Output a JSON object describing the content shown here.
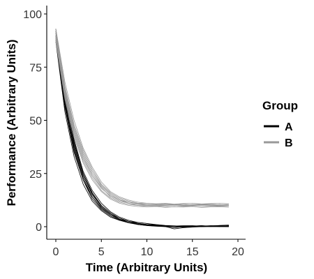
{
  "chart_data": {
    "type": "line",
    "xlabel": "Time (Arbitrary Units)",
    "ylabel": "Performance (Arbitrary Units)",
    "xlim": [
      0,
      19
    ],
    "ylim": [
      -3,
      95
    ],
    "xticks": [
      0,
      5,
      10,
      15,
      20
    ],
    "yticks": [
      0,
      25,
      50,
      75,
      100
    ],
    "grid": false,
    "legend": {
      "title": "Group",
      "placement": "right",
      "entries": [
        {
          "label": "A",
          "color": "#000000"
        },
        {
          "label": "B",
          "color": "#999999"
        }
      ]
    },
    "x": [
      0,
      1,
      2,
      3,
      4,
      5,
      6,
      7,
      8,
      9,
      10,
      11,
      12,
      13,
      14,
      15,
      16,
      17,
      18,
      19
    ],
    "series": [
      {
        "name": "A",
        "color": "#000000",
        "lines": [
          [
            90,
            58,
            37,
            23,
            14,
            9,
            5.5,
            3.5,
            2,
            1.5,
            1,
            0.5,
            0.3,
            0.2,
            0.1,
            0,
            0,
            0,
            0,
            0
          ],
          [
            92,
            60,
            38,
            24,
            15,
            9.5,
            6,
            3.5,
            2.5,
            1.5,
            1,
            0.8,
            0.3,
            0.1,
            0.3,
            0.2,
            0,
            0.2,
            0.1,
            0.5
          ],
          [
            88,
            56,
            35,
            22,
            13,
            8,
            5,
            3,
            2,
            1,
            0.5,
            0.2,
            0,
            -0.5,
            0,
            0.3,
            0.5,
            0.1,
            0.3,
            0.2
          ],
          [
            91,
            62,
            40,
            25,
            16,
            10,
            6.5,
            4,
            2.5,
            2,
            1.5,
            0.8,
            0.5,
            0.3,
            0.5,
            0.5,
            0.3,
            0.5,
            0.4,
            0.5
          ],
          [
            89,
            57,
            36,
            22,
            14,
            8.5,
            5.5,
            3.2,
            2,
            1.2,
            0.8,
            0.4,
            0.2,
            0,
            -0.3,
            0,
            0.2,
            0.4,
            0.5,
            0.3
          ],
          [
            93,
            63,
            41,
            26,
            17,
            11,
            7,
            4.5,
            3,
            2,
            1.5,
            1,
            0.6,
            0.4,
            0.2,
            0.4,
            0.1,
            0.3,
            0.6,
            0.8
          ],
          [
            87,
            54,
            33,
            20,
            12,
            7.5,
            4.5,
            3,
            1.8,
            1,
            0.6,
            0.3,
            0.1,
            -1,
            -0.5,
            -0.2,
            0,
            0.2,
            0.1,
            0
          ],
          [
            90,
            59,
            39,
            25,
            15.5,
            9.5,
            6,
            4,
            2.5,
            1.6,
            1,
            0.6,
            0.4,
            0.2,
            0,
            0.3,
            0.5,
            0.3,
            0.2,
            0.4
          ]
        ]
      },
      {
        "name": "B",
        "color": "#999999",
        "lines": [
          [
            90,
            63,
            45,
            33,
            24,
            18,
            14.5,
            12.5,
            11,
            10.5,
            10,
            10,
            10,
            10,
            10,
            10,
            10,
            10,
            10,
            10
          ],
          [
            92,
            66,
            48,
            36,
            27,
            20,
            16,
            13.5,
            12,
            11,
            10.5,
            10.3,
            10.1,
            10.2,
            10,
            9.8,
            10.1,
            10.2,
            9.9,
            10
          ],
          [
            88,
            61,
            43,
            31,
            23,
            17,
            13.5,
            11.5,
            10.5,
            10,
            9.5,
            9.7,
            9.5,
            9.3,
            9.6,
            9.5,
            9.3,
            9.6,
            9.5,
            9.3
          ],
          [
            91,
            65,
            47,
            35,
            26,
            19.5,
            15.5,
            13,
            11.5,
            11,
            11,
            10.8,
            11,
            10.6,
            10.9,
            11,
            10.7,
            10.9,
            11,
            10.8
          ],
          [
            89,
            62,
            44,
            32,
            24,
            18.5,
            14,
            12,
            11,
            10,
            10,
            9.8,
            10,
            10.3,
            9.8,
            10,
            10.4,
            10,
            9.7,
            9.9
          ],
          [
            93,
            68,
            50,
            37,
            28,
            21,
            16.5,
            14,
            12.5,
            11.5,
            11,
            10.5,
            10.7,
            10.4,
            10.6,
            10.2,
            10.5,
            10.6,
            10.3,
            10.5
          ],
          [
            87,
            60,
            42,
            30,
            22,
            16.5,
            13,
            11,
            10,
            9.5,
            9.3,
            9.5,
            9.1,
            9.4,
            9.2,
            9.5,
            9.1,
            9.3,
            9.4,
            9.2
          ],
          [
            90,
            64,
            46,
            34,
            25,
            19,
            15,
            12.5,
            11.5,
            10.8,
            10.2,
            10.6,
            10.3,
            10.5,
            10.1,
            10.4,
            10.6,
            10.2,
            10.4,
            10.1
          ]
        ]
      }
    ]
  }
}
